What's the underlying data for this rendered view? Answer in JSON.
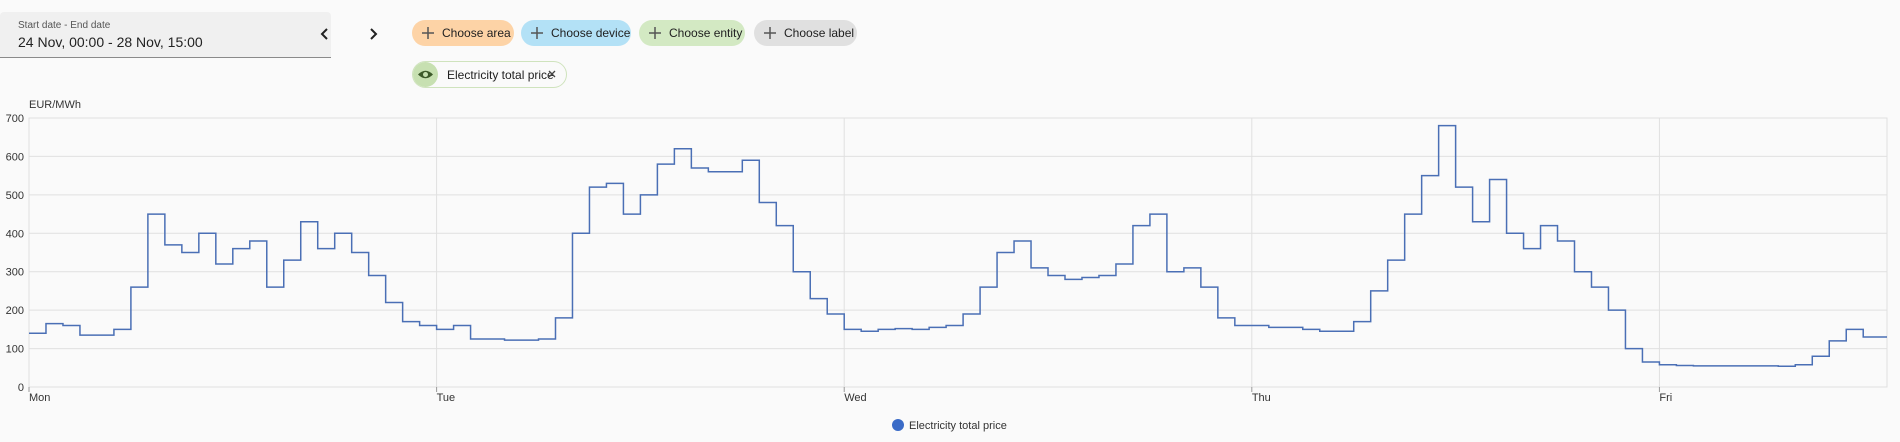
{
  "date_picker": {
    "label": "Start date - End date",
    "value": "24 Nov, 00:00 - 28 Nov, 15:00"
  },
  "chips": [
    "Choose area",
    "Choose device",
    "Choose entity",
    "Choose label"
  ],
  "selected_entity": "Electricity total price",
  "chart_data": {
    "type": "line",
    "step": true,
    "y_label": "EUR/MWh",
    "x": [
      0,
      1,
      2,
      3,
      4,
      5,
      6,
      7,
      8,
      9,
      10,
      11,
      12,
      13,
      14,
      15,
      16,
      17,
      18,
      19,
      20,
      21,
      22,
      23,
      24,
      25,
      26,
      27,
      28,
      29,
      30,
      31,
      32,
      33,
      34,
      35,
      36,
      37,
      38,
      39,
      40,
      41,
      42,
      43,
      44,
      45,
      46,
      47,
      48,
      49,
      50,
      51,
      52,
      53,
      54,
      55,
      56,
      57,
      58,
      59,
      60,
      61,
      62,
      63,
      64,
      65,
      66,
      67,
      68,
      69,
      70,
      71,
      72,
      73,
      74,
      75,
      76,
      77,
      78,
      79,
      80,
      81,
      82,
      83,
      84,
      85,
      86,
      87,
      88,
      89,
      90,
      91,
      92,
      93,
      94,
      95,
      96,
      97,
      98,
      99,
      100,
      101,
      102,
      103,
      104,
      105,
      106,
      107,
      108,
      109
    ],
    "series": [
      {
        "name": "Electricity total price",
        "color": "#4a6fb5",
        "values": [
          140,
          165,
          160,
          135,
          135,
          150,
          260,
          450,
          370,
          350,
          400,
          320,
          360,
          380,
          260,
          330,
          430,
          360,
          400,
          350,
          290,
          220,
          170,
          160,
          150,
          160,
          125,
          125,
          122,
          122,
          125,
          180,
          400,
          520,
          530,
          450,
          500,
          580,
          620,
          570,
          560,
          560,
          590,
          480,
          420,
          300,
          230,
          190,
          150,
          145,
          150,
          152,
          150,
          155,
          160,
          190,
          260,
          350,
          380,
          310,
          290,
          280,
          285,
          290,
          320,
          420,
          450,
          300,
          310,
          260,
          180,
          160,
          160,
          155,
          155,
          150,
          145,
          145,
          170,
          250,
          330,
          450,
          550,
          680,
          520,
          430,
          540,
          400,
          360,
          420,
          380,
          300,
          260,
          200,
          100,
          65,
          58,
          56,
          55,
          55,
          55,
          55,
          55,
          54,
          58,
          80,
          120,
          150,
          130,
          130
        ]
      }
    ],
    "xlim": [
      0,
      109.4
    ],
    "xticks": [
      {
        "value": 0,
        "label": "Mon"
      },
      {
        "value": 24,
        "label": "Tue"
      },
      {
        "value": 48,
        "label": "Wed"
      },
      {
        "value": 72,
        "label": "Thu"
      },
      {
        "value": 96,
        "label": "Fri"
      }
    ],
    "ylim": [
      0,
      700
    ],
    "yticks": [
      0,
      100,
      200,
      300,
      400,
      500,
      600,
      700
    ],
    "grid": true,
    "legend": "bottom",
    "legend_color": "#3a6bc7"
  }
}
